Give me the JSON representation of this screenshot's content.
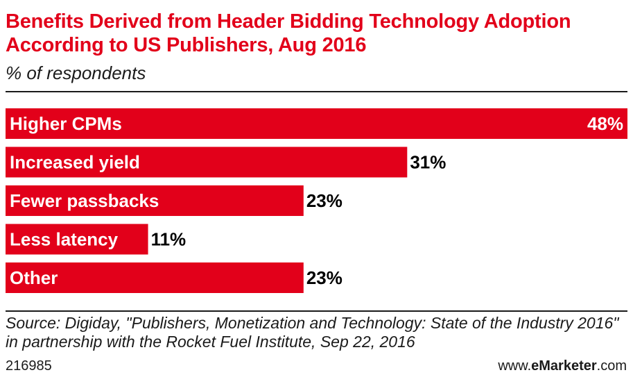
{
  "header": {
    "title": "Benefits Derived from Header Bidding Technology Adoption According to US Publishers, Aug 2016",
    "subtitle": "% of respondents"
  },
  "chart_data": {
    "type": "bar",
    "orientation": "horizontal",
    "categories": [
      "Higher CPMs",
      "Increased yield",
      "Fewer passbacks",
      "Less latency",
      "Other"
    ],
    "values": [
      48,
      31,
      23,
      11,
      23
    ],
    "value_labels": [
      "48%",
      "31%",
      "23%",
      "11%",
      "23%"
    ],
    "unit": "%",
    "xlim": [
      0,
      48
    ],
    "grid": false,
    "legend": "none",
    "bar_color": "#e2001a",
    "label_color_inside": "#ffffff",
    "label_color_outside": "#000000"
  },
  "footer": {
    "source": "Source: Digiday, \"Publishers, Monetization and Technology: State of the Industry 2016\" in partnership with the Rocket Fuel Institute, Sep 22, 2016",
    "chart_id": "216985",
    "brand_prefix": "www.",
    "brand_bold": "eMarketer",
    "brand_suffix": ".com"
  },
  "colors": {
    "accent": "#e2001a",
    "text": "#1a1a1a",
    "background": "#ffffff"
  }
}
